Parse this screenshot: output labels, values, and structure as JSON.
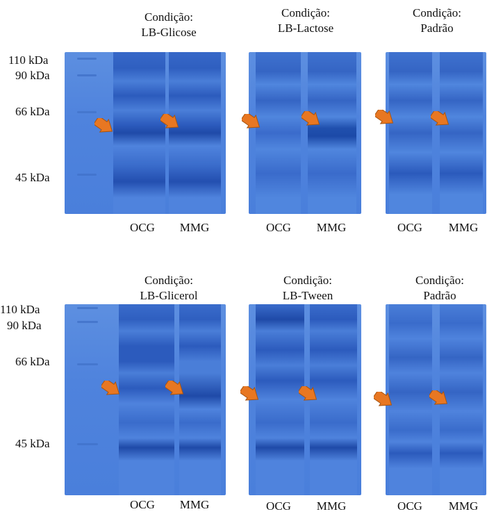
{
  "figure": {
    "top_panel": {
      "titles": [
        [
          "Condição:",
          "LB-Glicose"
        ],
        [
          "Condição:",
          "LB-Lactose"
        ],
        [
          "Condição:",
          "Padrão"
        ]
      ],
      "lanes": [
        "OCG",
        "MMG",
        "OCG",
        "MMG",
        "OCG",
        "MMG"
      ]
    },
    "bottom_panel": {
      "titles": [
        [
          "Condição:",
          "LB-Glicerol"
        ],
        [
          "Condição:",
          "LB-Tween"
        ],
        [
          "Condição:",
          "Padrão"
        ]
      ],
      "lanes": [
        "OCG",
        "MMG",
        "OCG",
        "MMG",
        "OCG",
        "MMG"
      ]
    },
    "markers": [
      "110 kDa",
      "90 kDa",
      "66 kDa",
      "45 kDa"
    ],
    "colors": {
      "gel": "#4f83dd",
      "band": "#1e48a8",
      "arrow": "#e87722"
    }
  }
}
